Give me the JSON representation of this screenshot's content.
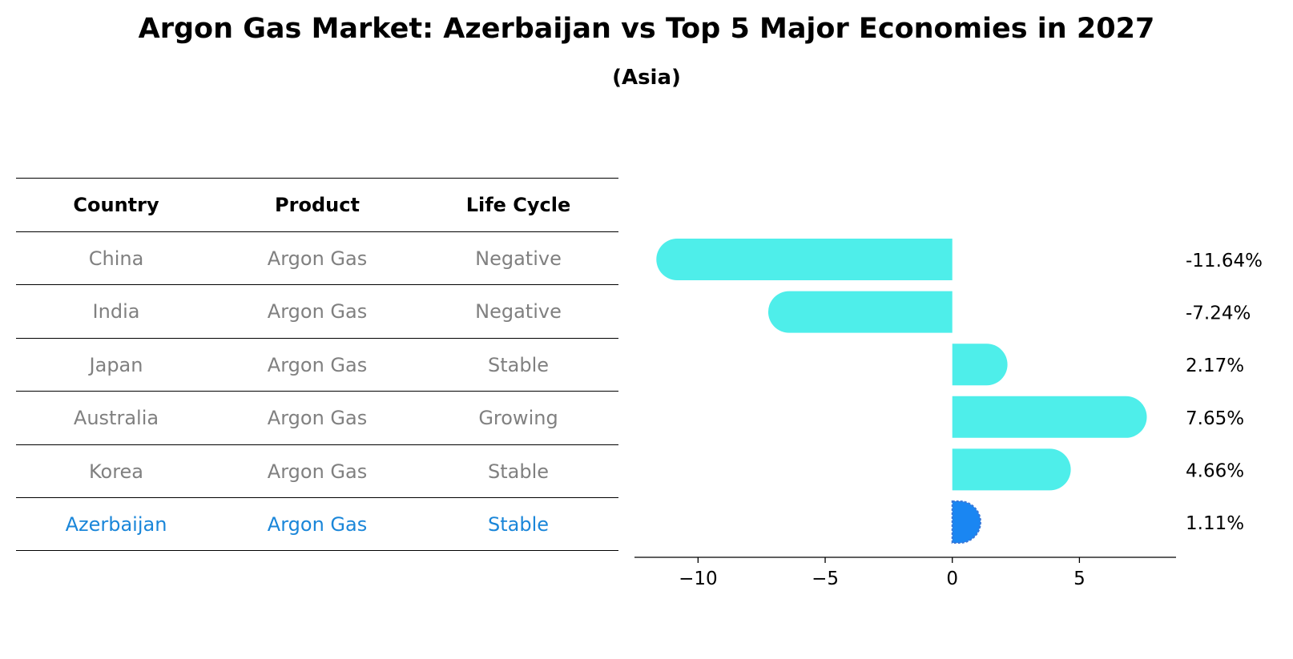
{
  "title": "Argon Gas Market: Azerbaijan vs Top 5 Major Economies in 2027",
  "subtitle": "(Asia)",
  "table": {
    "headers": [
      "Country",
      "Product",
      "Life Cycle"
    ],
    "rows": [
      [
        "China",
        "Argon Gas",
        "Negative"
      ],
      [
        "India",
        "Argon Gas",
        "Negative"
      ],
      [
        "Japan",
        "Argon Gas",
        "Stable"
      ],
      [
        "Australia",
        "Argon Gas",
        "Growing"
      ],
      [
        "Korea",
        "Argon Gas",
        "Stable"
      ],
      [
        "Azerbaijan",
        "Argon Gas",
        "Stable"
      ]
    ],
    "highlight_row": 5,
    "highlight_color": "#1a86d9",
    "text_color": "#808080"
  },
  "chart_data": {
    "type": "bar",
    "orientation": "horizontal",
    "categories": [
      "China",
      "India",
      "Japan",
      "Australia",
      "Korea",
      "Azerbaijan"
    ],
    "values": [
      -11.64,
      -7.24,
      2.17,
      7.65,
      4.66,
      1.11
    ],
    "value_labels": [
      "-11.64%",
      "-7.24%",
      "2.17%",
      "7.65%",
      "4.66%",
      "1.11%"
    ],
    "xlim": [
      -12.5,
      8.8
    ],
    "xticks": [
      -10,
      -5,
      0,
      5
    ],
    "xtick_labels": [
      "−10",
      "−5",
      "0",
      "5"
    ],
    "bar_color": "#4eeeea",
    "highlight_color": "#1a86f2",
    "highlight_index": 5,
    "grid": false,
    "xlabel": "",
    "ylabel": ""
  }
}
